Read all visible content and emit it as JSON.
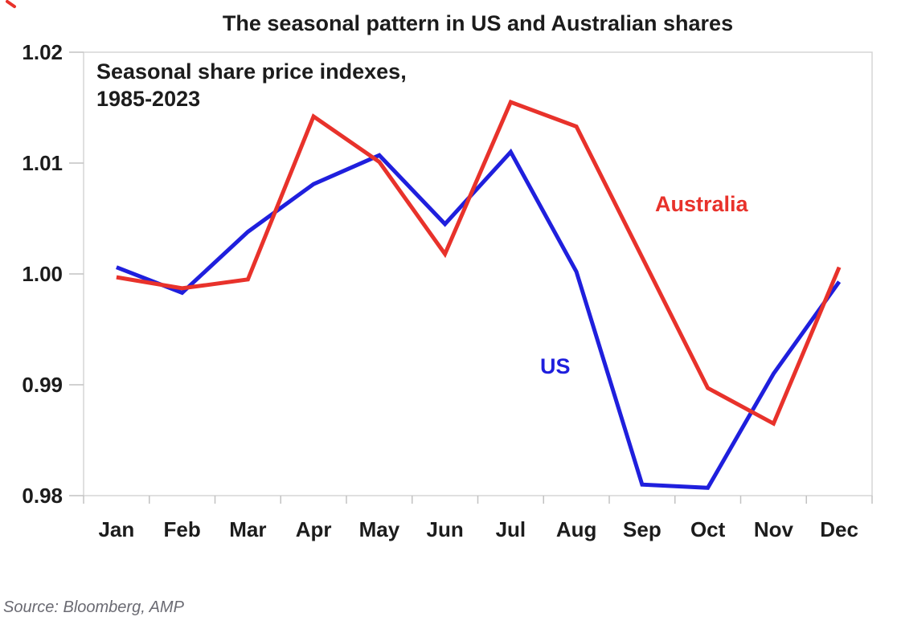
{
  "page": {
    "annotation_line1": "Seasonal share price indexes,",
    "annotation_line2": "1985-2023",
    "source": "Source: Bloomberg, AMP"
  },
  "labels": {
    "australia": "Australia",
    "us": "US"
  },
  "colors": {
    "us_line": "#1f1fdd",
    "australia_line": "#e8322b",
    "axis_border": "#d6d6d6",
    "tick": "#c2c2c2",
    "text": "#1c1c1c",
    "source_text": "#6a6a72"
  },
  "chart_data": {
    "type": "line",
    "title": "The seasonal pattern in US and Australian shares",
    "subtitle": "Seasonal share price indexes, 1985-2023",
    "categories": [
      "Jan",
      "Feb",
      "Mar",
      "Apr",
      "May",
      "Jun",
      "Jul",
      "Aug",
      "Sep",
      "Oct",
      "Nov",
      "Dec"
    ],
    "series": [
      {
        "name": "US",
        "color": "#1f1fdd",
        "values": [
          1.0006,
          0.9983,
          1.0038,
          1.0081,
          1.0107,
          1.0045,
          1.011,
          1.0002,
          0.981,
          0.9807,
          0.991,
          0.9993
        ]
      },
      {
        "name": "Australia",
        "color": "#e8322b",
        "values": [
          0.9997,
          0.9987,
          0.9995,
          1.0142,
          1.0101,
          1.0018,
          1.0155,
          1.0133,
          1.0015,
          0.9897,
          0.9865,
          1.0006
        ]
      }
    ],
    "xlabel": "",
    "ylabel": "",
    "ylim": [
      0.98,
      1.02
    ],
    "y_tick_labels": [
      "1.02",
      "1.01",
      "1.00",
      "0.99",
      "0.98"
    ],
    "grid": false,
    "legend": "inline-labels",
    "source": "Source: Bloomberg, AMP"
  }
}
